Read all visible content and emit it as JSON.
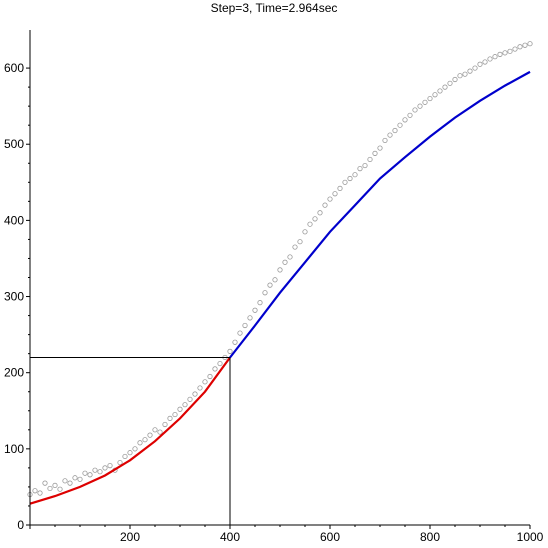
{
  "chart_data": {
    "type": "scatter",
    "title": "Step=3,  Time=2.964sec",
    "xlabel": "",
    "ylabel": "",
    "xlim": [
      0,
      1000
    ],
    "ylim": [
      0,
      650
    ],
    "x_ticks": [
      0,
      200,
      400,
      600,
      800,
      1000
    ],
    "y_ticks": [
      0,
      100,
      200,
      300,
      400,
      500,
      600
    ],
    "x_tick_labels": [
      "0",
      "200",
      "400",
      "600",
      "800",
      "1000"
    ],
    "y_tick_labels": [
      "0",
      "100",
      "200",
      "300",
      "400",
      "500",
      "600"
    ],
    "grid": false,
    "legend": "none",
    "breakpoint": {
      "x": 400,
      "y": 220
    },
    "scatter_color": "#9a9a9a",
    "series": [
      {
        "type": "line",
        "color": "#dd0000",
        "x": [
          0,
          50,
          100,
          150,
          200,
          250,
          300,
          350,
          400
        ],
        "y": [
          28,
          38,
          50,
          65,
          85,
          110,
          140,
          175,
          220
        ]
      },
      {
        "type": "line",
        "color": "#0000cc",
        "x": [
          400,
          450,
          500,
          550,
          600,
          650,
          700,
          750,
          800,
          850,
          900,
          950,
          1000
        ],
        "y": [
          220,
          262,
          305,
          345,
          385,
          420,
          455,
          483,
          510,
          535,
          557,
          577,
          595
        ]
      },
      {
        "type": "scatter",
        "color": "#9a9a9a",
        "x": [
          0,
          10,
          20,
          30,
          40,
          50,
          60,
          70,
          80,
          90,
          100,
          110,
          120,
          130,
          140,
          150,
          160,
          170,
          180,
          190,
          200,
          210,
          220,
          230,
          240,
          250,
          260,
          270,
          280,
          290,
          300,
          310,
          320,
          330,
          340,
          350,
          360,
          370,
          380,
          390,
          400,
          410,
          420,
          430,
          440,
          450,
          460,
          470,
          480,
          490,
          500,
          510,
          520,
          530,
          540,
          550,
          560,
          570,
          580,
          590,
          600,
          610,
          620,
          630,
          640,
          650,
          660,
          670,
          680,
          690,
          700,
          710,
          720,
          730,
          740,
          750,
          760,
          770,
          780,
          790,
          800,
          810,
          820,
          830,
          840,
          850,
          860,
          870,
          880,
          890,
          900,
          910,
          920,
          930,
          940,
          950,
          960,
          970,
          980,
          990,
          1000
        ],
        "y": [
          40,
          45,
          42,
          55,
          48,
          52,
          47,
          58,
          55,
          62,
          60,
          68,
          66,
          72,
          70,
          75,
          78,
          72,
          82,
          90,
          95,
          100,
          108,
          112,
          118,
          125,
          122,
          132,
          140,
          145,
          152,
          158,
          165,
          172,
          180,
          188,
          195,
          205,
          212,
          220,
          228,
          240,
          252,
          262,
          272,
          282,
          292,
          305,
          315,
          322,
          335,
          345,
          352,
          365,
          372,
          385,
          395,
          402,
          410,
          420,
          428,
          435,
          442,
          450,
          455,
          460,
          468,
          472,
          480,
          488,
          495,
          505,
          512,
          518,
          525,
          532,
          538,
          545,
          550,
          555,
          560,
          565,
          570,
          575,
          580,
          585,
          590,
          592,
          596,
          600,
          605,
          608,
          612,
          615,
          618,
          620,
          622,
          625,
          628,
          630,
          632
        ]
      }
    ]
  }
}
